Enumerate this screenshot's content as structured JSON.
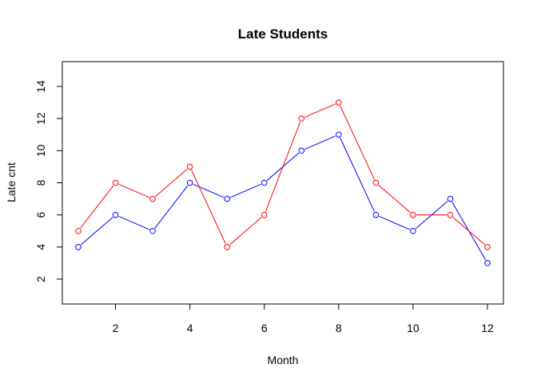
{
  "chart_data": {
    "type": "line",
    "title": "Late Students",
    "xlabel": "Month",
    "ylabel": "Late cnt",
    "x": [
      1,
      2,
      3,
      4,
      5,
      6,
      7,
      8,
      9,
      10,
      11,
      12
    ],
    "xlim": [
      1,
      12
    ],
    "ylim": [
      1,
      15
    ],
    "x_ticks": [
      "2",
      "4",
      "6",
      "8",
      "10",
      "12"
    ],
    "y_ticks": [
      "2",
      "4",
      "6",
      "8",
      "10",
      "12",
      "14"
    ],
    "grid": false,
    "legend": "none",
    "series": [
      {
        "color": "#0000ff",
        "values": [
          4,
          6,
          5,
          8,
          7,
          8,
          10,
          11,
          6,
          5,
          7,
          3
        ]
      },
      {
        "color": "#ff0000",
        "values": [
          5,
          8,
          7,
          9,
          4,
          6,
          12,
          13,
          8,
          6,
          6,
          4
        ]
      }
    ]
  }
}
